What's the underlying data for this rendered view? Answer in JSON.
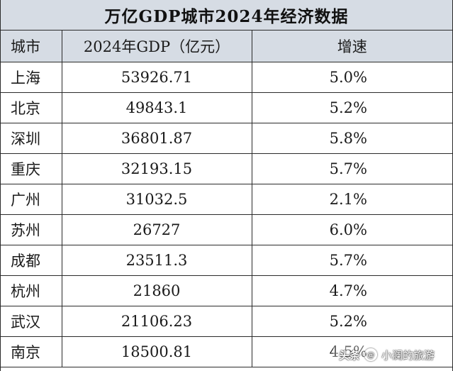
{
  "title": "万亿GDP城市2024年经济数据",
  "table": {
    "headers": {
      "city": "城市",
      "gdp": "2024年GDP（亿元）",
      "rate": "增速"
    },
    "rows": [
      {
        "city": "上海",
        "gdp": "53926.71",
        "rate": "5.0%"
      },
      {
        "city": "北京",
        "gdp": "49843.1",
        "rate": "5.2%"
      },
      {
        "city": "深圳",
        "gdp": "36801.87",
        "rate": "5.8%"
      },
      {
        "city": "重庆",
        "gdp": "32193.15",
        "rate": "5.7%"
      },
      {
        "city": "广州",
        "gdp": "31032.5",
        "rate": "2.1%"
      },
      {
        "city": "苏州",
        "gdp": "26727",
        "rate": "6.0%"
      },
      {
        "city": "成都",
        "gdp": "23511.3",
        "rate": "5.7%"
      },
      {
        "city": "杭州",
        "gdp": "21860",
        "rate": "4.7%"
      },
      {
        "city": "武汉",
        "gdp": "21106.23",
        "rate": "5.2%"
      },
      {
        "city": "南京",
        "gdp": "18500.81",
        "rate": "4.5%"
      }
    ]
  },
  "watermark": {
    "brand": "头条",
    "account": "小澜的旅游",
    "icon": "at-icon"
  },
  "colors": {
    "header_bg": "#d6dce4",
    "border": "#2b2b2b"
  }
}
